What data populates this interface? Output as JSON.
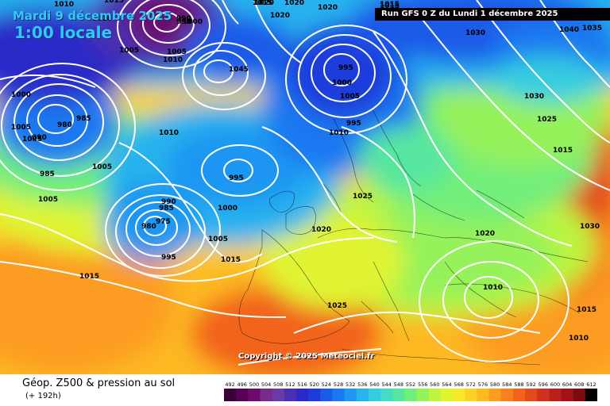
{
  "header": {
    "date_title": "Mardi 9 décembre 2025",
    "time_title": "1:00 locale",
    "run_info": "Run GFS 0 Z du Lundi 1 décembre 2025"
  },
  "copyright": "Copyright © 2025 Meteociel.fr",
  "legend": {
    "title": "Géop. Z500 & pression au sol",
    "subtitle": "(+ 192h)",
    "values": [
      "492",
      "496",
      "500",
      "504",
      "508",
      "512",
      "516",
      "520",
      "524",
      "528",
      "532",
      "536",
      "540",
      "544",
      "548",
      "552",
      "556",
      "560",
      "564",
      "568",
      "572",
      "576",
      "580",
      "584",
      "588",
      "592",
      "596",
      "600",
      "604",
      "608",
      "612"
    ],
    "colors": [
      "#3a003a",
      "#560056",
      "#6d0a6d",
      "#7a2a8a",
      "#6a3aa6",
      "#4a2fb0",
      "#2a2ac8",
      "#1e3cdc",
      "#1c5ae8",
      "#1c78f0",
      "#1e96f2",
      "#28b2ee",
      "#36cce0",
      "#44dcc4",
      "#56e6a0",
      "#72ee7a",
      "#96f25a",
      "#bcf440",
      "#e0f430",
      "#f6ea2a",
      "#fcd226",
      "#fdb822",
      "#fc9c20",
      "#f8801e",
      "#f2641c",
      "#e44a1c",
      "#d0321c",
      "#b8201a",
      "#a01418",
      "#800a12",
      "#000000"
    ]
  },
  "map": {
    "isobar_labels": [
      "1010",
      "1015",
      "1020",
      "1020",
      "1020",
      "1015",
      "1030",
      "1030",
      "1040",
      "1035",
      "1025",
      "1015",
      "1010",
      "1005",
      "1000",
      "990",
      "1010",
      "1005",
      "1000",
      "1045",
      "1005",
      "980",
      "985",
      "1005",
      "1000",
      "990",
      "1010",
      "1010",
      "1005",
      "985",
      "1005",
      "995",
      "1005",
      "1000",
      "990",
      "985",
      "975",
      "980",
      "995",
      "1005",
      "1015",
      "1020",
      "1015",
      "1015",
      "1020",
      "1010",
      "1025",
      "1030",
      "1025",
      "1015",
      "1020",
      "1015",
      "1010"
    ],
    "pressure_centers": [
      "995",
      "995",
      "990"
    ]
  }
}
